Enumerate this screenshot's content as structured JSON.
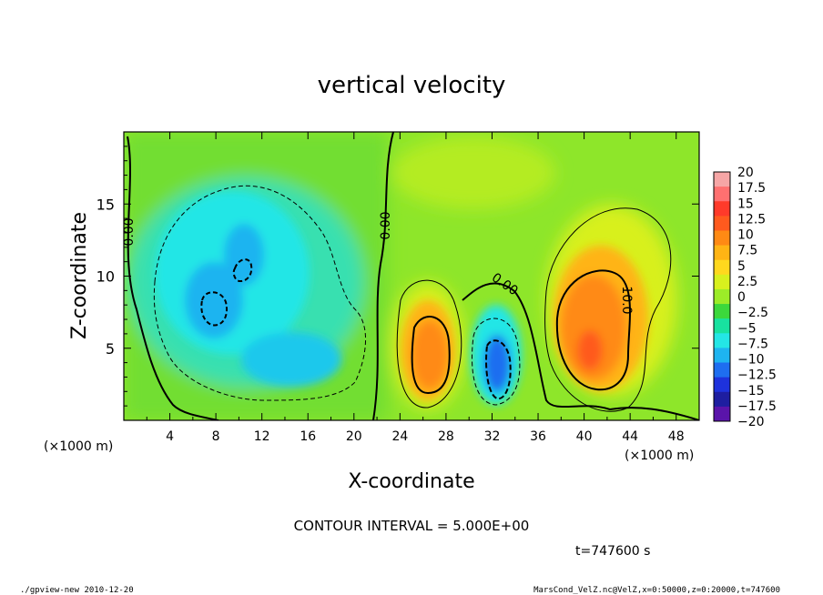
{
  "chart_data": {
    "type": "heatmap",
    "title": "vertical velocity",
    "xlabel": "X-coordinate",
    "ylabel": "Z-coordinate",
    "x_unit_label": "(×1000 m)",
    "y_unit_label": "(×1000 m)",
    "xlim": [
      0,
      50
    ],
    "ylim": [
      0,
      20
    ],
    "x_ticks": [
      4,
      8,
      12,
      16,
      20,
      24,
      28,
      32,
      36,
      40,
      44,
      48
    ],
    "y_ticks": [
      5,
      10,
      15
    ],
    "colorbar": {
      "labels": [
        "20",
        "17.5",
        "15",
        "12.5",
        "10",
        "7.5",
        "5",
        "2.5",
        "0",
        "−2.5",
        "−5",
        "−7.5",
        "−10",
        "−12.5",
        "−15",
        "−17.5",
        "−20"
      ],
      "levels": [
        20,
        17.5,
        15,
        12.5,
        10,
        7.5,
        5,
        2.5,
        0,
        -2.5,
        -5,
        -7.5,
        -10,
        -12.5,
        -15,
        -17.5,
        -20
      ],
      "colors": [
        "#f6a6a6",
        "#ff7070",
        "#ff3a2a",
        "#ff5a1e",
        "#ff8a14",
        "#ffb414",
        "#ffd81e",
        "#d8f01e",
        "#9cec28",
        "#3cd83c",
        "#18e2a0",
        "#24e6e6",
        "#1eb4f0",
        "#1e6ef0",
        "#1e32dc",
        "#1e1ea0",
        "#5a14aa"
      ]
    },
    "contour_labels": [
      "0.00",
      "0.00",
      "0.00",
      "10.0"
    ],
    "features": [
      {
        "kind": "updraft",
        "x_center": 26,
        "z_center": 4.5,
        "peak": 12.5
      },
      {
        "kind": "downdraft",
        "x_center": 32.5,
        "z_center": 3.5,
        "peak": -12.5
      },
      {
        "kind": "updraft",
        "x_center": 40,
        "z_center": 6,
        "peak": 15
      },
      {
        "kind": "downdraft",
        "x_center": 8,
        "z_center": 8,
        "peak": -10
      },
      {
        "kind": "downdraft",
        "x_center": 10,
        "z_center": 10.5,
        "peak": -10
      }
    ],
    "annotations": {
      "contour_interval": "CONTOUR INTERVAL = 5.000E+00",
      "time": "t=747600 s",
      "footer_left": "./gpview-new 2010-12-20",
      "footer_right": "MarsCond_VelZ.nc@VelZ,x=0:50000,z=0:20000,t=747600"
    }
  }
}
